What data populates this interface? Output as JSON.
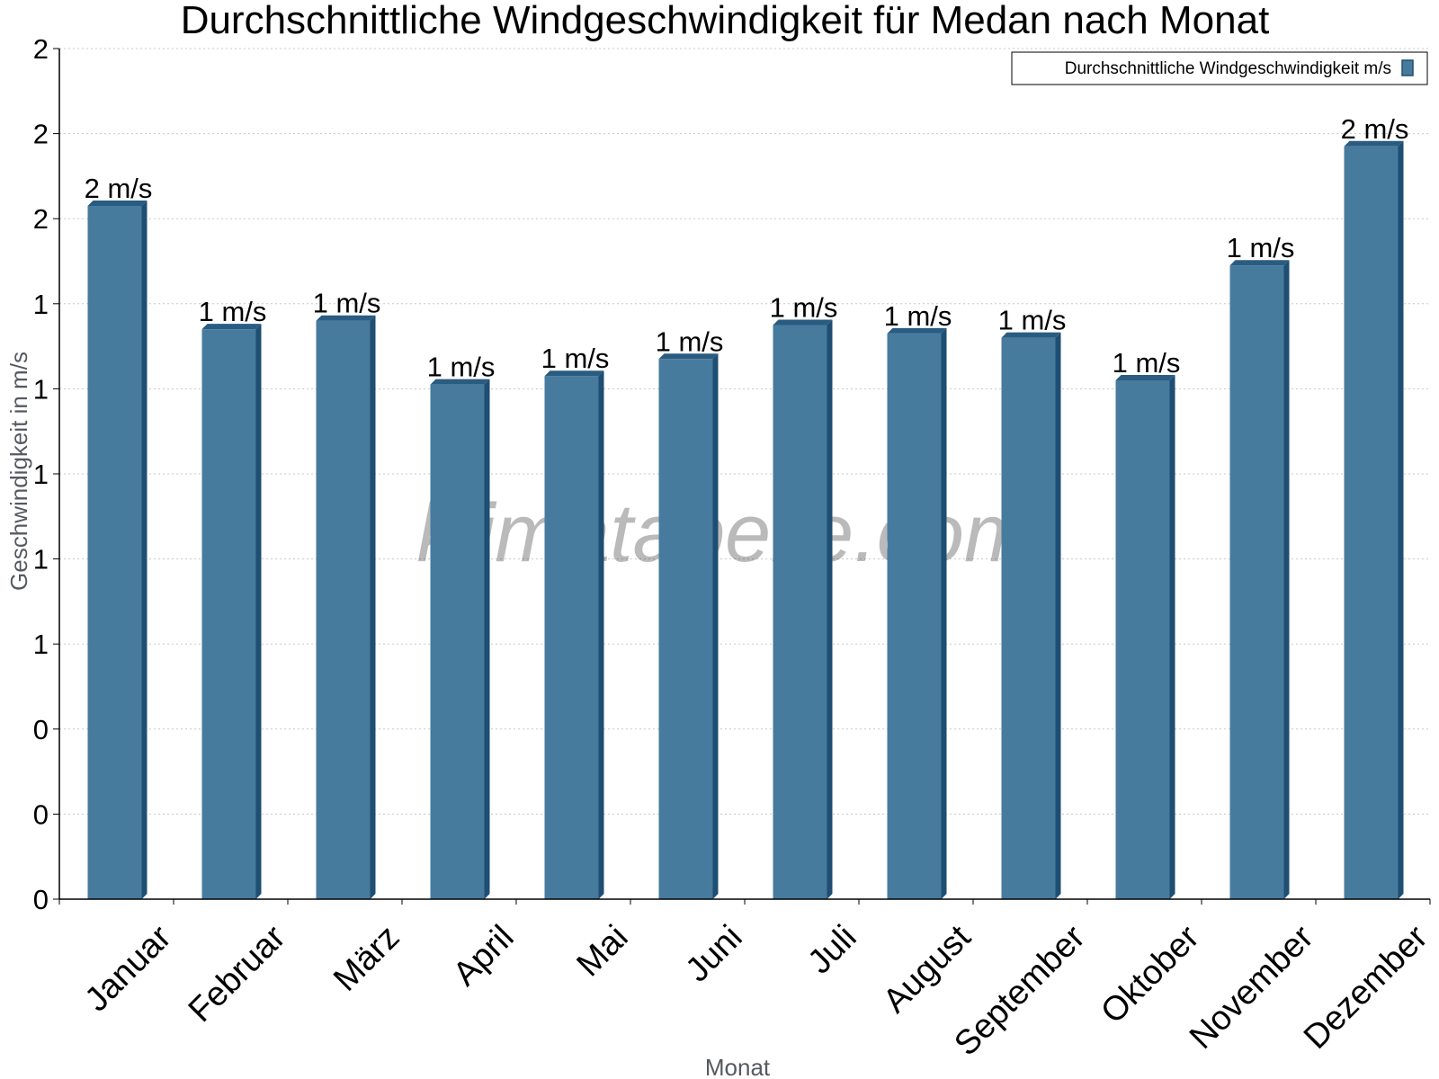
{
  "chart_data": {
    "type": "bar",
    "title": "Durchschnittliche Windgeschwindigkeit für Medan nach Monat",
    "xlabel": "Monat",
    "ylabel": "Geschwindigkeit in m/s",
    "watermark": "klimatabelle.com",
    "legend": {
      "label": "Durchschnittliche Windgeschwindigkeit m/s",
      "position": "top-right"
    },
    "categories": [
      "Januar",
      "Februar",
      "März",
      "April",
      "Mai",
      "Juni",
      "Juli",
      "August",
      "September",
      "Oktober",
      "November",
      "Dezember"
    ],
    "values": [
      1.63,
      1.34,
      1.36,
      1.21,
      1.23,
      1.27,
      1.35,
      1.33,
      1.32,
      1.22,
      1.49,
      1.77
    ],
    "data_labels": [
      "2 m/s",
      "1 m/s",
      "1 m/s",
      "1 m/s",
      "1 m/s",
      "1 m/s",
      "1 m/s",
      "1 m/s",
      "1 m/s",
      "1 m/s",
      "1 m/s",
      "2 m/s"
    ],
    "y_ticks": [
      0,
      0.2,
      0.4,
      0.6,
      0.8,
      1.0,
      1.2,
      1.4,
      1.6,
      1.8,
      2.0
    ],
    "y_tick_labels": [
      "0",
      "0",
      "0",
      "1",
      "1",
      "1",
      "1",
      "1",
      "2",
      "2",
      "2"
    ],
    "ylim": [
      0,
      2.0
    ],
    "grid": true,
    "colors": {
      "bar": "#467b9e",
      "bar_side": "#1e4e72",
      "bar_top": "#2a5c82",
      "grid": "#c8c8c8",
      "axis": "#000000"
    }
  }
}
